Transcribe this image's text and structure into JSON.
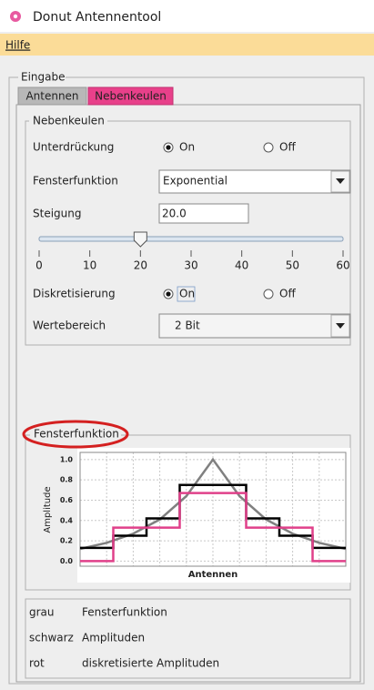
{
  "window": {
    "title": "Donut Antennentool"
  },
  "menu": {
    "items": [
      "Hilfe"
    ]
  },
  "group": {
    "title": "Eingabe"
  },
  "tabs": {
    "items": [
      "Antennen",
      "Nebenkeulen"
    ],
    "selected": 1
  },
  "panel": {
    "title": "Nebenkeulen",
    "suppression": {
      "label": "Unterdrückung",
      "options": [
        "On",
        "Off"
      ],
      "selected": 0
    },
    "window_function": {
      "label": "Fensterfunktion",
      "value": "Exponential"
    },
    "slope": {
      "label": "Steigung",
      "value": "20.0"
    },
    "slider": {
      "min": 0,
      "max": 60,
      "value": 20,
      "ticks": [
        0,
        10,
        20,
        30,
        40,
        50,
        60
      ]
    },
    "discretization": {
      "label": "Diskretisierung",
      "options": [
        "On",
        "Off"
      ],
      "selected": 0
    },
    "value_range": {
      "label": "Wertebereich",
      "value": "2 Bit"
    }
  },
  "chart_data": {
    "type": "line",
    "title": "Fensterfunktion",
    "x_label": "Antennen",
    "y_label": "Amplitude",
    "xlim": [
      0,
      10
    ],
    "ylim": [
      -0.05,
      1.07
    ],
    "yticks": [
      {
        "value": 0,
        "label": "0.0"
      },
      {
        "value": 0.2,
        "label": "0.2"
      },
      {
        "value": 0.4,
        "label": "0.4"
      },
      {
        "value": 0.6,
        "label": "0.6"
      },
      {
        "value": 0.8,
        "label": "0.8"
      },
      {
        "value": 1,
        "label": "1.0"
      }
    ],
    "grid": true,
    "series": [
      {
        "name": "Fensterfunktion",
        "color_label": "grau",
        "color": "#808080",
        "x": [
          0,
          1,
          2,
          3,
          4,
          5,
          6,
          7,
          8,
          9,
          10
        ],
        "values": [
          0.12,
          0.18,
          0.27,
          0.41,
          0.64,
          1.0,
          0.64,
          0.41,
          0.27,
          0.18,
          0.12
        ]
      },
      {
        "name": "Amplituden",
        "color_label": "schwarz",
        "color": "#000000",
        "x": [
          0,
          1.25,
          1.25,
          2.5,
          2.5,
          3.75,
          3.75,
          6.25,
          6.25,
          7.5,
          7.5,
          8.75,
          8.75,
          10
        ],
        "values": [
          0.13,
          0.13,
          0.25,
          0.25,
          0.42,
          0.42,
          0.75,
          0.75,
          0.42,
          0.42,
          0.25,
          0.25,
          0.13,
          0.13
        ]
      },
      {
        "name": "diskretisierte Amplituden",
        "color_label": "rot",
        "color": "#e0408a",
        "x": [
          0,
          1.25,
          1.25,
          3.75,
          3.75,
          6.25,
          6.25,
          8.75,
          8.75,
          10
        ],
        "values": [
          0,
          0,
          0.33,
          0.33,
          0.67,
          0.67,
          0.33,
          0.33,
          0,
          0
        ]
      }
    ]
  }
}
